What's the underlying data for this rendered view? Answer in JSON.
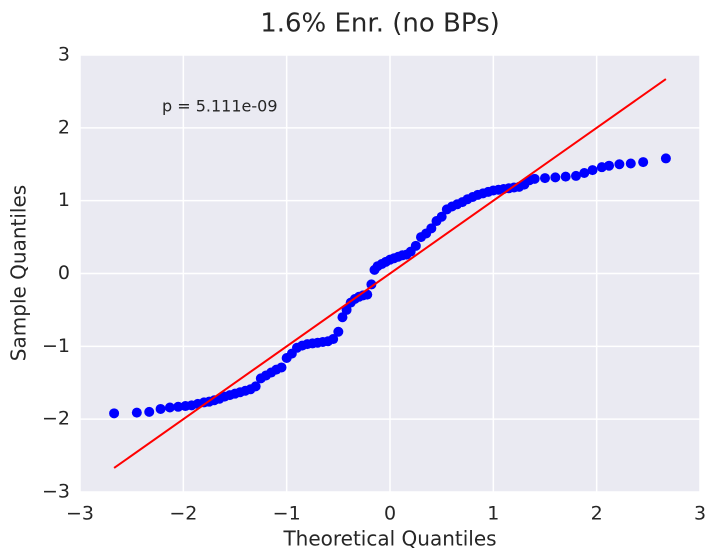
{
  "chart_data": {
    "type": "scatter",
    "title": "1.6% Enr. (no BPs)",
    "xlabel": "Theoretical Quantiles",
    "ylabel": "Sample Quantiles",
    "annotation": "p = 5.111e-09",
    "xlim": [
      -3,
      3
    ],
    "ylim": [
      -3,
      3
    ],
    "xticks": [
      {
        "value": -3,
        "label": "−3"
      },
      {
        "value": -2,
        "label": "−2"
      },
      {
        "value": -1,
        "label": "−1"
      },
      0,
      1,
      2,
      3
    ],
    "yticks": [
      {
        "value": -3,
        "label": "−3"
      },
      {
        "value": -2,
        "label": "−2"
      },
      {
        "value": -1,
        "label": "−1"
      },
      0,
      1,
      2,
      3
    ],
    "grid": true,
    "color": "#0000ff",
    "x": [
      -2.67,
      -2.45,
      -2.33,
      -2.22,
      -2.13,
      -2.05,
      -1.98,
      -1.92,
      -1.86,
      -1.8,
      -1.75,
      -1.7,
      -1.65,
      -1.6,
      -1.55,
      -1.5,
      -1.45,
      -1.4,
      -1.35,
      -1.3,
      -1.25,
      -1.2,
      -1.15,
      -1.1,
      -1.05,
      -1.0,
      -0.95,
      -0.9,
      -0.85,
      -0.8,
      -0.75,
      -0.7,
      -0.65,
      -0.6,
      -0.55,
      -0.5,
      -0.46,
      -0.42,
      -0.38,
      -0.34,
      -0.3,
      -0.26,
      -0.22,
      -0.18,
      -0.15,
      -0.12,
      -0.08,
      -0.04,
      0,
      0.04,
      0.08,
      0.12,
      0.16,
      0.2,
      0.25,
      0.3,
      0.35,
      0.4,
      0.45,
      0.5,
      0.55,
      0.6,
      0.65,
      0.7,
      0.75,
      0.8,
      0.85,
      0.9,
      0.95,
      1.0,
      1.05,
      1.1,
      1.15,
      1.2,
      1.25,
      1.3,
      1.35,
      1.4,
      1.5,
      1.6,
      1.7,
      1.8,
      1.88,
      1.96,
      2.05,
      2.12,
      2.22,
      2.33,
      2.45,
      2.67
    ],
    "y": [
      -1.92,
      -1.91,
      -1.9,
      -1.86,
      -1.84,
      -1.83,
      -1.82,
      -1.81,
      -1.79,
      -1.77,
      -1.76,
      -1.74,
      -1.72,
      -1.69,
      -1.67,
      -1.65,
      -1.63,
      -1.61,
      -1.59,
      -1.55,
      -1.44,
      -1.4,
      -1.36,
      -1.32,
      -1.29,
      -1.16,
      -1.1,
      -1.02,
      -0.99,
      -0.97,
      -0.96,
      -0.95,
      -0.94,
      -0.93,
      -0.9,
      -0.8,
      -0.6,
      -0.5,
      -0.4,
      -0.35,
      -0.32,
      -0.3,
      -0.29,
      -0.15,
      0.05,
      0.1,
      0.13,
      0.16,
      0.19,
      0.21,
      0.23,
      0.25,
      0.26,
      0.3,
      0.38,
      0.5,
      0.55,
      0.62,
      0.72,
      0.78,
      0.88,
      0.92,
      0.95,
      0.98,
      1.02,
      1.05,
      1.08,
      1.1,
      1.12,
      1.14,
      1.15,
      1.16,
      1.17,
      1.18,
      1.19,
      1.22,
      1.28,
      1.3,
      1.31,
      1.32,
      1.33,
      1.34,
      1.38,
      1.42,
      1.46,
      1.48,
      1.5,
      1.51,
      1.53,
      1.58
    ],
    "fit_line": {
      "x": [
        -2.67,
        2.67
      ],
      "y": [
        -2.67,
        2.67
      ],
      "color": "#ff0000"
    }
  }
}
